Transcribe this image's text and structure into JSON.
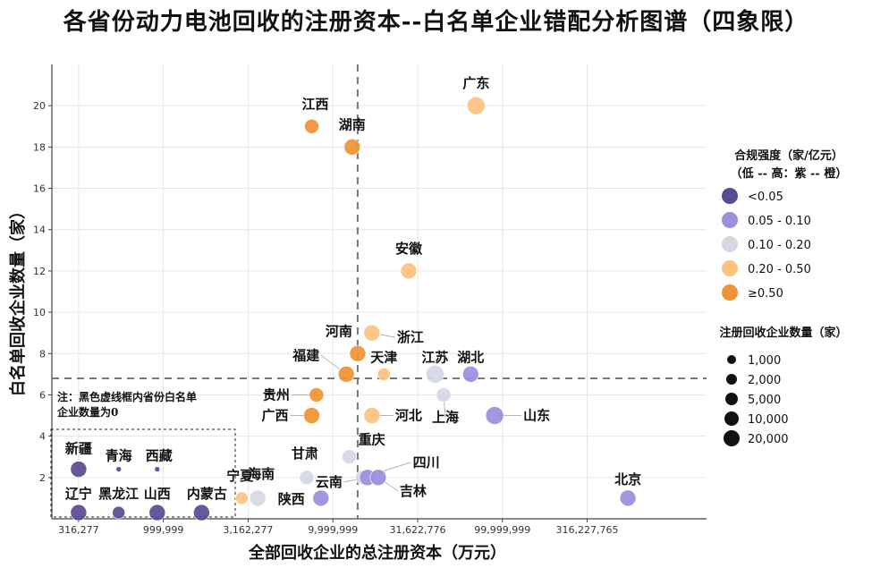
{
  "chart_data": {
    "type": "scatter",
    "title": "各省份动力电池回收的注册资本--白名单企业错配分析图谱（四象限）",
    "xlabel": "全部回收企业的总注册资本（万元）",
    "ylabel": "白名单回收企业数量（家）",
    "x_scale": "log",
    "xlim": [
      220000,
      1600000000
    ],
    "ylim": [
      0,
      22
    ],
    "x_ticks": [
      316277,
      999999,
      3162277,
      9999999,
      31622776,
      99999999,
      316227765
    ],
    "x_tick_labels": [
      "316,277",
      "999,999",
      "3,162,277",
      "9,999,999",
      "31,622,776",
      "99,999,999",
      "316,227,765"
    ],
    "y_ticks": [
      2,
      4,
      6,
      8,
      10,
      12,
      14,
      16,
      18,
      20
    ],
    "threshold_x": 14000000,
    "threshold_y": 6.8,
    "grid": true,
    "note": [
      "注：黑色虚线框内省份白名单",
      "企业数量为0"
    ],
    "color_legend": {
      "title": [
        "合规强度（家/亿元）",
        "（低 -- 高：紫 -- 橙）"
      ],
      "items": [
        {
          "label": "<0.05",
          "color": "#5b4a91"
        },
        {
          "label": "0.05 - 0.10",
          "color": "#9b8fdc"
        },
        {
          "label": "0.10 - 0.20",
          "color": "#d3d8e3"
        },
        {
          "label": "0.20 - 0.50",
          "color": "#fcc27f"
        },
        {
          "label": "≥0.50",
          "color": "#ef9234"
        }
      ]
    },
    "size_legend": {
      "title": "注册回收企业数量（家）",
      "items": [
        "1,000",
        "2,000",
        "5,000",
        "10,000",
        "20,000"
      ]
    },
    "points": [
      {
        "name": "广东",
        "x": 70000000,
        "y": 20,
        "cls": 3,
        "r": 10,
        "lx": 0,
        "ly": -20,
        "anchor": "middle"
      },
      {
        "name": "江西",
        "x": 7500000,
        "y": 19,
        "cls": 4,
        "r": 8,
        "lx": 4,
        "ly": -20,
        "anchor": "middle"
      },
      {
        "name": "湖南",
        "x": 13000000,
        "y": 18,
        "cls": 4,
        "r": 9,
        "lx": 0,
        "ly": -20,
        "anchor": "middle"
      },
      {
        "name": "安徽",
        "x": 28000000,
        "y": 12,
        "cls": 3,
        "r": 9,
        "lx": 0,
        "ly": -20,
        "anchor": "middle"
      },
      {
        "name": "浙江",
        "x": 17000000,
        "y": 9,
        "cls": 3,
        "r": 9,
        "lx": 28,
        "ly": 10,
        "anchor": "start"
      },
      {
        "name": "河南",
        "x": 14000000,
        "y": 8,
        "cls": 4,
        "r": 9,
        "lx": -6,
        "ly": -20,
        "anchor": "end"
      },
      {
        "name": "福建",
        "x": 12000000,
        "y": 7,
        "cls": 4,
        "r": 9,
        "lx": -30,
        "ly": -16,
        "anchor": "end"
      },
      {
        "name": "天津",
        "x": 20000000,
        "y": 7,
        "cls": 3,
        "r": 7,
        "lx": 0,
        "ly": -14,
        "anchor": "middle"
      },
      {
        "name": "江苏",
        "x": 40000000,
        "y": 7,
        "cls": 2,
        "r": 10,
        "lx": 0,
        "ly": -14,
        "anchor": "middle"
      },
      {
        "name": "湖北",
        "x": 65000000,
        "y": 7,
        "cls": 1,
        "r": 9,
        "lx": 0,
        "ly": -14,
        "anchor": "middle"
      },
      {
        "name": "贵州",
        "x": 8000000,
        "y": 6,
        "cls": 4,
        "r": 8,
        "lx": -30,
        "ly": 5,
        "anchor": "end"
      },
      {
        "name": "上海",
        "x": 45000000,
        "y": 6,
        "cls": 2,
        "r": 8,
        "lx": 2,
        "ly": 30,
        "anchor": "middle"
      },
      {
        "name": "广西",
        "x": 7500000,
        "y": 5,
        "cls": 4,
        "r": 9,
        "lx": -26,
        "ly": 5,
        "anchor": "end"
      },
      {
        "name": "河北",
        "x": 17000000,
        "y": 5,
        "cls": 3,
        "r": 9,
        "lx": 26,
        "ly": 5,
        "anchor": "start"
      },
      {
        "name": "山东",
        "x": 90000000,
        "y": 5,
        "cls": 1,
        "r": 10,
        "lx": 32,
        "ly": 5,
        "anchor": "start"
      },
      {
        "name": "甘肃",
        "x": 7000000,
        "y": 2,
        "cls": 2,
        "r": 8,
        "lx": -2,
        "ly": -22,
        "anchor": "middle"
      },
      {
        "name": "重庆",
        "x": 12500000,
        "y": 3,
        "cls": 2,
        "r": 8,
        "lx": 10,
        "ly": -14,
        "anchor": "start"
      },
      {
        "name": "四川",
        "x": 15000000,
        "y": 2,
        "cls": 2,
        "r": 8,
        "lx": 56,
        "ly": -12,
        "anchor": "start"
      },
      {
        "name": "云南",
        "x": 16000000,
        "y": 2,
        "cls": 1,
        "r": 9,
        "lx": -28,
        "ly": 10,
        "anchor": "end"
      },
      {
        "name": "吉林",
        "x": 18500000,
        "y": 2,
        "cls": 1,
        "r": 9,
        "lx": 24,
        "ly": 20,
        "anchor": "start"
      },
      {
        "name": "宁夏",
        "x": 2900000,
        "y": 1,
        "cls": 3,
        "r": 7,
        "lx": -2,
        "ly": -20,
        "anchor": "middle"
      },
      {
        "name": "海南",
        "x": 3600000,
        "y": 1,
        "cls": 2,
        "r": 9,
        "lx": 4,
        "ly": -22,
        "anchor": "middle"
      },
      {
        "name": "陕西",
        "x": 8500000,
        "y": 1,
        "cls": 1,
        "r": 9,
        "lx": -18,
        "ly": 6,
        "anchor": "end"
      },
      {
        "name": "北京",
        "x": 550000000,
        "y": 1,
        "cls": 1,
        "r": 9,
        "lx": 0,
        "ly": -16,
        "anchor": "middle"
      },
      {
        "name": "新疆",
        "x": 316277,
        "y": 2.4,
        "cls": 0,
        "r": 9,
        "lx": 0,
        "ly": -18,
        "anchor": "middle"
      },
      {
        "name": "青海",
        "x": 545000,
        "y": 2.4,
        "cls": 0,
        "r": 3,
        "lx": 0,
        "ly": -10,
        "anchor": "middle"
      },
      {
        "name": "西藏",
        "x": 920000,
        "y": 2.4,
        "cls": 0,
        "r": 3,
        "lx": 2,
        "ly": -10,
        "anchor": "middle"
      },
      {
        "name": "辽宁",
        "x": 316277,
        "y": 0.3,
        "cls": 0,
        "r": 9,
        "lx": 0,
        "ly": -16,
        "anchor": "middle"
      },
      {
        "name": "黑龙江",
        "x": 545000,
        "y": 0.3,
        "cls": 0,
        "r": 7,
        "lx": 0,
        "ly": -16,
        "anchor": "middle"
      },
      {
        "name": "山西",
        "x": 920000,
        "y": 0.3,
        "cls": 0,
        "r": 9,
        "lx": 0,
        "ly": -16,
        "anchor": "middle"
      },
      {
        "name": "内蒙古",
        "x": 1680000,
        "y": 0.3,
        "cls": 0,
        "r": 9,
        "lx": 6,
        "ly": -16,
        "anchor": "middle"
      }
    ]
  }
}
